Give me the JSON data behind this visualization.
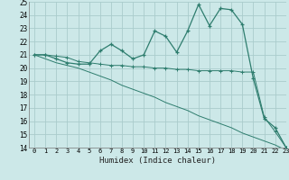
{
  "xlabel": "Humidex (Indice chaleur)",
  "x": [
    0,
    1,
    2,
    3,
    4,
    5,
    6,
    7,
    8,
    9,
    10,
    11,
    12,
    13,
    14,
    15,
    16,
    17,
    18,
    19,
    20,
    21,
    22,
    23
  ],
  "line1": [
    21.0,
    21.0,
    20.7,
    20.4,
    20.3,
    20.3,
    21.3,
    21.8,
    21.3,
    20.7,
    21.0,
    22.8,
    22.4,
    21.2,
    22.8,
    24.8,
    23.2,
    24.5,
    24.4,
    23.3,
    19.2,
    16.2,
    15.5,
    14.0
  ],
  "line2": [
    21.0,
    21.0,
    20.9,
    20.8,
    20.5,
    20.4,
    20.3,
    20.2,
    20.2,
    20.1,
    20.1,
    20.0,
    20.0,
    19.9,
    19.9,
    19.8,
    19.8,
    19.8,
    19.8,
    19.7,
    19.7,
    16.3,
    15.2,
    14.0
  ],
  "line3": [
    21.0,
    20.7,
    20.4,
    20.2,
    20.0,
    19.7,
    19.4,
    19.1,
    18.7,
    18.4,
    18.1,
    17.8,
    17.4,
    17.1,
    16.8,
    16.4,
    16.1,
    15.8,
    15.5,
    15.1,
    14.8,
    14.5,
    14.2,
    13.8
  ],
  "line_color": "#2e7d6e",
  "bg_color": "#cce8e8",
  "grid_color": "#aacccc",
  "ylim": [
    14,
    25
  ],
  "xlim": [
    -0.5,
    23
  ],
  "yticks": [
    14,
    15,
    16,
    17,
    18,
    19,
    20,
    21,
    22,
    23,
    24,
    25
  ],
  "xticks": [
    0,
    1,
    2,
    3,
    4,
    5,
    6,
    7,
    8,
    9,
    10,
    11,
    12,
    13,
    14,
    15,
    16,
    17,
    18,
    19,
    20,
    21,
    22,
    23
  ]
}
